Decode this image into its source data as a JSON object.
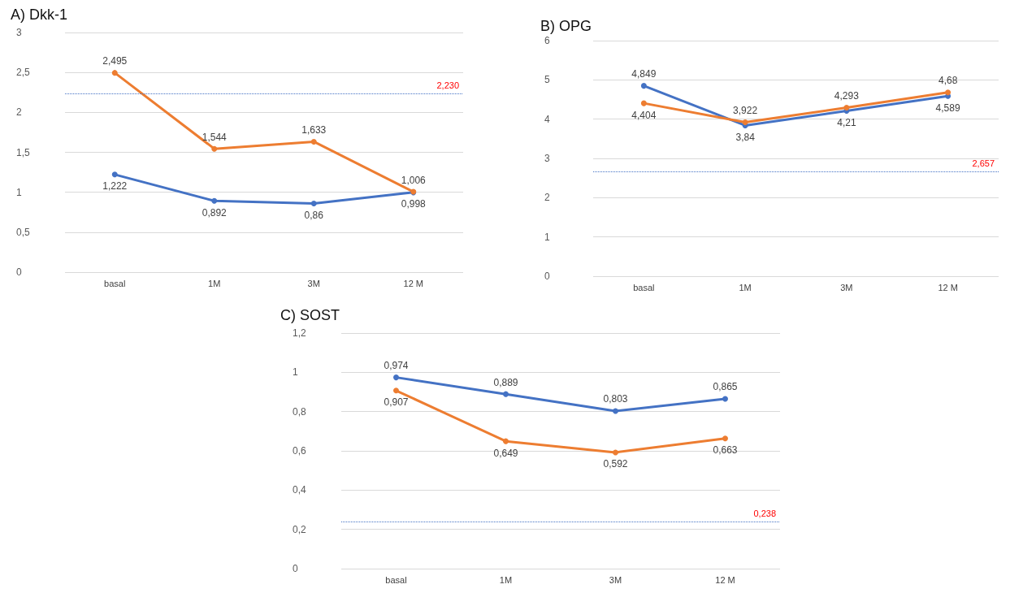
{
  "chart_data": [
    {
      "type": "line",
      "title": "A) Dkk-1",
      "categories": [
        "basal",
        "1M",
        "3M",
        "12 M"
      ],
      "series": [
        {
          "color": "#4472c4",
          "values": [
            1.222,
            0.892,
            0.86,
            0.998
          ],
          "value_labels": [
            "1,222",
            "0,892",
            "0,86",
            "0,998"
          ]
        },
        {
          "color": "#ed7d31",
          "values": [
            2.495,
            1.544,
            1.633,
            1.006
          ],
          "value_labels": [
            "2,495",
            "1,544",
            "1,633",
            "1,006"
          ]
        }
      ],
      "ylim": [
        0,
        3
      ],
      "yticks": [
        0,
        {
          "value": 0.5,
          "label": "0,5"
        },
        1,
        {
          "value": 1.5,
          "label": "1,5"
        },
        2,
        {
          "value": 2.5,
          "label": "2,5"
        },
        3
      ],
      "ref_lines": [
        {
          "axis": "y",
          "value": 2.23,
          "label": "2,230",
          "color": "#4472c4",
          "line_style": "dotted"
        }
      ],
      "grid": "y",
      "marker": "circle",
      "line_style": "solid"
    },
    {
      "type": "line",
      "title": "B) OPG",
      "categories": [
        "basal",
        "1M",
        "3M",
        "12 M"
      ],
      "series": [
        {
          "color": "#4472c4",
          "values": [
            4.849,
            3.84,
            4.21,
            4.589
          ],
          "value_labels": [
            "4,849",
            "3,84",
            "4,21",
            "4,589"
          ]
        },
        {
          "color": "#ed7d31",
          "values": [
            4.404,
            3.922,
            4.293,
            4.68
          ],
          "value_labels": [
            "4,404",
            "3,922",
            "4,293",
            "4,68"
          ]
        }
      ],
      "ylim": [
        0,
        6
      ],
      "yticks": [
        0,
        1,
        2,
        3,
        4,
        5,
        6
      ],
      "ref_lines": [
        {
          "axis": "y",
          "value": 2.657,
          "label": "2,657",
          "color": "#4472c4",
          "line_style": "dotted"
        }
      ],
      "grid": "y",
      "marker": "circle",
      "line_style": "solid"
    },
    {
      "type": "line",
      "title": "C) SOST",
      "categories": [
        "basal",
        "1M",
        "3M",
        "12 M"
      ],
      "series": [
        {
          "color": "#4472c4",
          "values": [
            0.974,
            0.889,
            0.803,
            0.865
          ],
          "value_labels": [
            "0,974",
            "0,889",
            "0,803",
            "0,865"
          ]
        },
        {
          "color": "#ed7d31",
          "values": [
            0.907,
            0.649,
            0.592,
            0.663
          ],
          "value_labels": [
            "0,907",
            "0,649",
            "0,592",
            "0,663"
          ]
        }
      ],
      "ylim": [
        0,
        1.2
      ],
      "yticks": [
        0,
        {
          "value": 0.2,
          "label": "0,2"
        },
        {
          "value": 0.4,
          "label": "0,4"
        },
        {
          "value": 0.6,
          "label": "0,6"
        },
        {
          "value": 0.8,
          "label": "0,8"
        },
        1,
        {
          "value": 1.2,
          "label": "1,2"
        }
      ],
      "ref_lines": [
        {
          "axis": "y",
          "value": 0.238,
          "label": "0,238",
          "color": "#4472c4",
          "line_style": "dotted"
        }
      ],
      "grid": "y",
      "marker": "circle",
      "line_style": "solid"
    }
  ]
}
